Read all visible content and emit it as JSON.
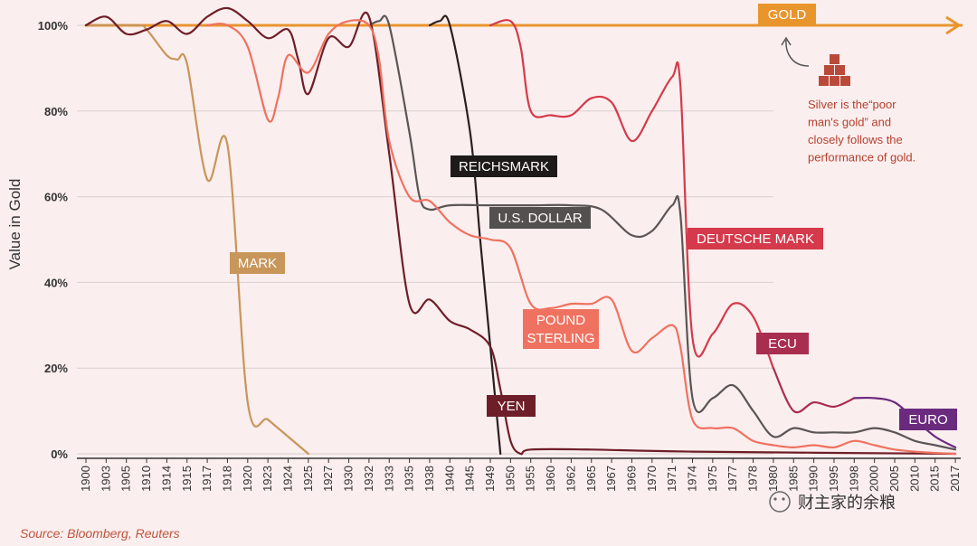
{
  "chart_data": {
    "type": "line",
    "title": "",
    "xlabel": "",
    "ylabel": "Value in Gold",
    "ylim": [
      0,
      100
    ],
    "yticks": [
      "0%",
      "20%",
      "40%",
      "60%",
      "80%",
      "100%"
    ],
    "categories": [
      "1900",
      "1903",
      "1905",
      "1910",
      "1914",
      "1915",
      "1917",
      "1918",
      "1920",
      "1923",
      "1924",
      "1925",
      "1927",
      "1930",
      "1932",
      "1933",
      "1935",
      "1938",
      "1940",
      "1945",
      "1949",
      "1950",
      "1955",
      "1960",
      "1962",
      "1965",
      "1967",
      "1969",
      "1970",
      "1971",
      "1974",
      "1975",
      "1977",
      "1978",
      "1980",
      "1985",
      "1990",
      "1995",
      "1998",
      "2000",
      "2005",
      "2010",
      "2015",
      "2017"
    ],
    "series": [
      {
        "name": "GOLD",
        "color": "#e8952e",
        "values": [
          [
            0,
            100
          ],
          [
            43.3,
            100
          ]
        ]
      },
      {
        "name": "MARK",
        "color": "#c8955a",
        "values": [
          [
            0,
            100
          ],
          [
            2.5,
            100
          ],
          [
            3,
            99
          ],
          [
            4,
            93
          ],
          [
            4.5,
            92
          ],
          [
            5,
            91
          ],
          [
            6,
            64
          ],
          [
            7,
            72
          ],
          [
            8,
            12
          ],
          [
            9,
            8
          ],
          [
            10,
            4
          ],
          [
            11,
            0
          ]
        ]
      },
      {
        "name": "REICHSMARK",
        "color": "#2a1f1e",
        "values": [
          [
            17,
            100
          ],
          [
            17.5,
            101
          ],
          [
            18,
            100
          ],
          [
            19,
            75
          ],
          [
            19.5,
            50
          ],
          [
            20,
            25
          ],
          [
            20.5,
            0
          ]
        ]
      },
      {
        "name": "U.S. DOLLAR",
        "color": "#5b5555",
        "values": [
          [
            14,
            100
          ],
          [
            14.5,
            101
          ],
          [
            15,
            100
          ],
          [
            16,
            75
          ],
          [
            16.5,
            60
          ],
          [
            17,
            57
          ],
          [
            18,
            58
          ],
          [
            20,
            58
          ],
          [
            22,
            58
          ],
          [
            24,
            58
          ],
          [
            25.5,
            57
          ],
          [
            27,
            51
          ],
          [
            28,
            52
          ],
          [
            29,
            58
          ],
          [
            29.4,
            56
          ],
          [
            30,
            13
          ],
          [
            31,
            13
          ],
          [
            32,
            16
          ],
          [
            33,
            10
          ],
          [
            34,
            4
          ],
          [
            35,
            6
          ],
          [
            36,
            5
          ],
          [
            37,
            5
          ],
          [
            38,
            5
          ],
          [
            39,
            6
          ],
          [
            40,
            5
          ],
          [
            41,
            3
          ],
          [
            42,
            2
          ],
          [
            43,
            1
          ]
        ]
      },
      {
        "name": "YEN",
        "color": "#6e1e28",
        "values": [
          [
            0,
            100
          ],
          [
            1,
            102
          ],
          [
            2,
            98
          ],
          [
            3,
            99
          ],
          [
            4,
            101
          ],
          [
            5,
            98
          ],
          [
            6,
            102
          ],
          [
            7,
            104
          ],
          [
            8,
            101
          ],
          [
            9,
            97
          ],
          [
            10,
            99
          ],
          [
            10.5,
            92
          ],
          [
            11,
            84
          ],
          [
            12,
            97
          ],
          [
            13,
            95
          ],
          [
            14,
            102
          ],
          [
            15,
            70
          ],
          [
            16,
            35
          ],
          [
            17,
            36
          ],
          [
            18,
            31
          ],
          [
            19,
            29
          ],
          [
            20,
            25
          ],
          [
            20.5,
            15
          ],
          [
            21,
            3
          ],
          [
            21.5,
            0
          ],
          [
            22,
            1
          ],
          [
            25,
            1
          ],
          [
            30,
            0.5
          ],
          [
            43,
            0
          ]
        ]
      },
      {
        "name": "POUND STERLING",
        "color": "#ef7260",
        "values": [
          [
            6,
            100
          ],
          [
            7,
            100
          ],
          [
            8,
            95
          ],
          [
            9,
            78
          ],
          [
            9.5,
            83
          ],
          [
            10,
            93
          ],
          [
            11,
            89
          ],
          [
            12,
            98
          ],
          [
            13,
            101
          ],
          [
            14,
            100
          ],
          [
            14.5,
            92
          ],
          [
            15,
            73
          ],
          [
            16,
            60
          ],
          [
            17,
            59
          ],
          [
            18,
            54
          ],
          [
            19,
            51
          ],
          [
            20,
            50
          ],
          [
            21,
            48
          ],
          [
            22,
            35
          ],
          [
            23,
            34
          ],
          [
            24,
            35
          ],
          [
            25,
            35
          ],
          [
            26,
            36
          ],
          [
            27,
            24
          ],
          [
            28,
            27
          ],
          [
            29,
            30
          ],
          [
            29.4,
            25
          ],
          [
            30,
            8
          ],
          [
            31,
            6
          ],
          [
            32,
            6
          ],
          [
            33,
            3
          ],
          [
            34,
            2
          ],
          [
            35,
            1.5
          ],
          [
            36,
            2
          ],
          [
            37,
            1.5
          ],
          [
            38,
            3
          ],
          [
            39,
            2
          ],
          [
            40,
            1
          ],
          [
            41,
            0.5
          ],
          [
            42,
            0.2
          ],
          [
            43,
            0
          ]
        ]
      },
      {
        "name": "DEUTSCHE MARK",
        "color": "#d43a4b",
        "values": [
          [
            20,
            100
          ],
          [
            21,
            101
          ],
          [
            21.5,
            95
          ],
          [
            22,
            80
          ],
          [
            23,
            79
          ],
          [
            24,
            79
          ],
          [
            25,
            83
          ],
          [
            26,
            82
          ],
          [
            27,
            73
          ],
          [
            28,
            80
          ],
          [
            29,
            88
          ],
          [
            29.4,
            86
          ],
          [
            30,
            27
          ],
          [
            31,
            28
          ],
          [
            32,
            35
          ],
          [
            33,
            32
          ],
          [
            34,
            20
          ]
        ]
      },
      {
        "name": "ECU",
        "color": "#a82d4f",
        "values": [
          [
            34,
            20
          ],
          [
            35,
            10
          ],
          [
            36,
            12
          ],
          [
            37,
            11
          ],
          [
            38,
            13
          ]
        ]
      },
      {
        "name": "EURO",
        "color": "#6a2a7e",
        "values": [
          [
            38,
            13
          ],
          [
            39,
            13
          ],
          [
            40,
            12
          ],
          [
            41,
            8
          ],
          [
            42,
            4
          ],
          [
            43,
            1.5
          ]
        ]
      }
    ],
    "labels": {
      "gold": "GOLD",
      "mark": "MARK",
      "reichsmark": "REICHSMARK",
      "us_dollar": "U.S. DOLLAR",
      "deutsche_mark": "DEUTSCHE MARK",
      "pound_1": "POUND",
      "pound_2": "STERLING",
      "ecu": "ECU",
      "yen": "YEN",
      "euro": "EURO"
    },
    "annotation": [
      "Silver is the“poor",
      "man's gold” and",
      "closely follows the",
      "performance of gold."
    ],
    "source": "Source: Bloomberg, Reuters",
    "watermark": "财主家的余粮"
  },
  "colors": {
    "background": "#fbeeee",
    "grid": "#d9d0d0",
    "axis": "#333333",
    "silver_icon": "#b94a3a",
    "label_gold": "#e8952e",
    "label_mark": "#c8955a",
    "label_reichsmark": "#1e1a1a",
    "label_usd": "#555050",
    "label_dm": "#d43a4b",
    "label_pound": "#ef7260",
    "label_ecu": "#a82d4f",
    "label_yen": "#6e1e28",
    "label_euro": "#6a2a7e"
  }
}
